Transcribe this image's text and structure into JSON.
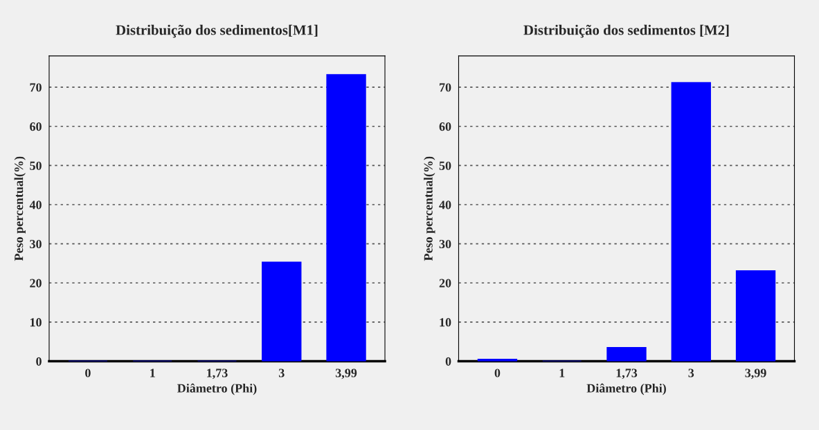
{
  "chart_data": [
    {
      "type": "bar",
      "title": "Distribuição dos sedimentos[M1]",
      "xlabel": "Diâmetro (Phi)",
      "ylabel": "Peso percentual(%)",
      "categories": [
        "0",
        "1",
        "1,73",
        "3",
        "3,99"
      ],
      "values": [
        0,
        0,
        0,
        25.3,
        73.2
      ],
      "color": "#0000ff",
      "ylim": [
        0,
        78
      ],
      "yticks": [
        0,
        10,
        20,
        30,
        40,
        50,
        60,
        70
      ],
      "grid": "y"
    },
    {
      "type": "bar",
      "title": "Distribuição dos sedimentos [M2]",
      "xlabel": "Diâmetro (Phi)",
      "ylabel": "Peso percentual(%)",
      "categories": [
        "0",
        "1",
        "1,73",
        "3",
        "3,99"
      ],
      "values": [
        0.5,
        0,
        3.5,
        71.2,
        23.1
      ],
      "color": "#0000ff",
      "ylim": [
        0,
        78
      ],
      "yticks": [
        0,
        10,
        20,
        30,
        40,
        50,
        60,
        70
      ],
      "grid": "y"
    }
  ]
}
